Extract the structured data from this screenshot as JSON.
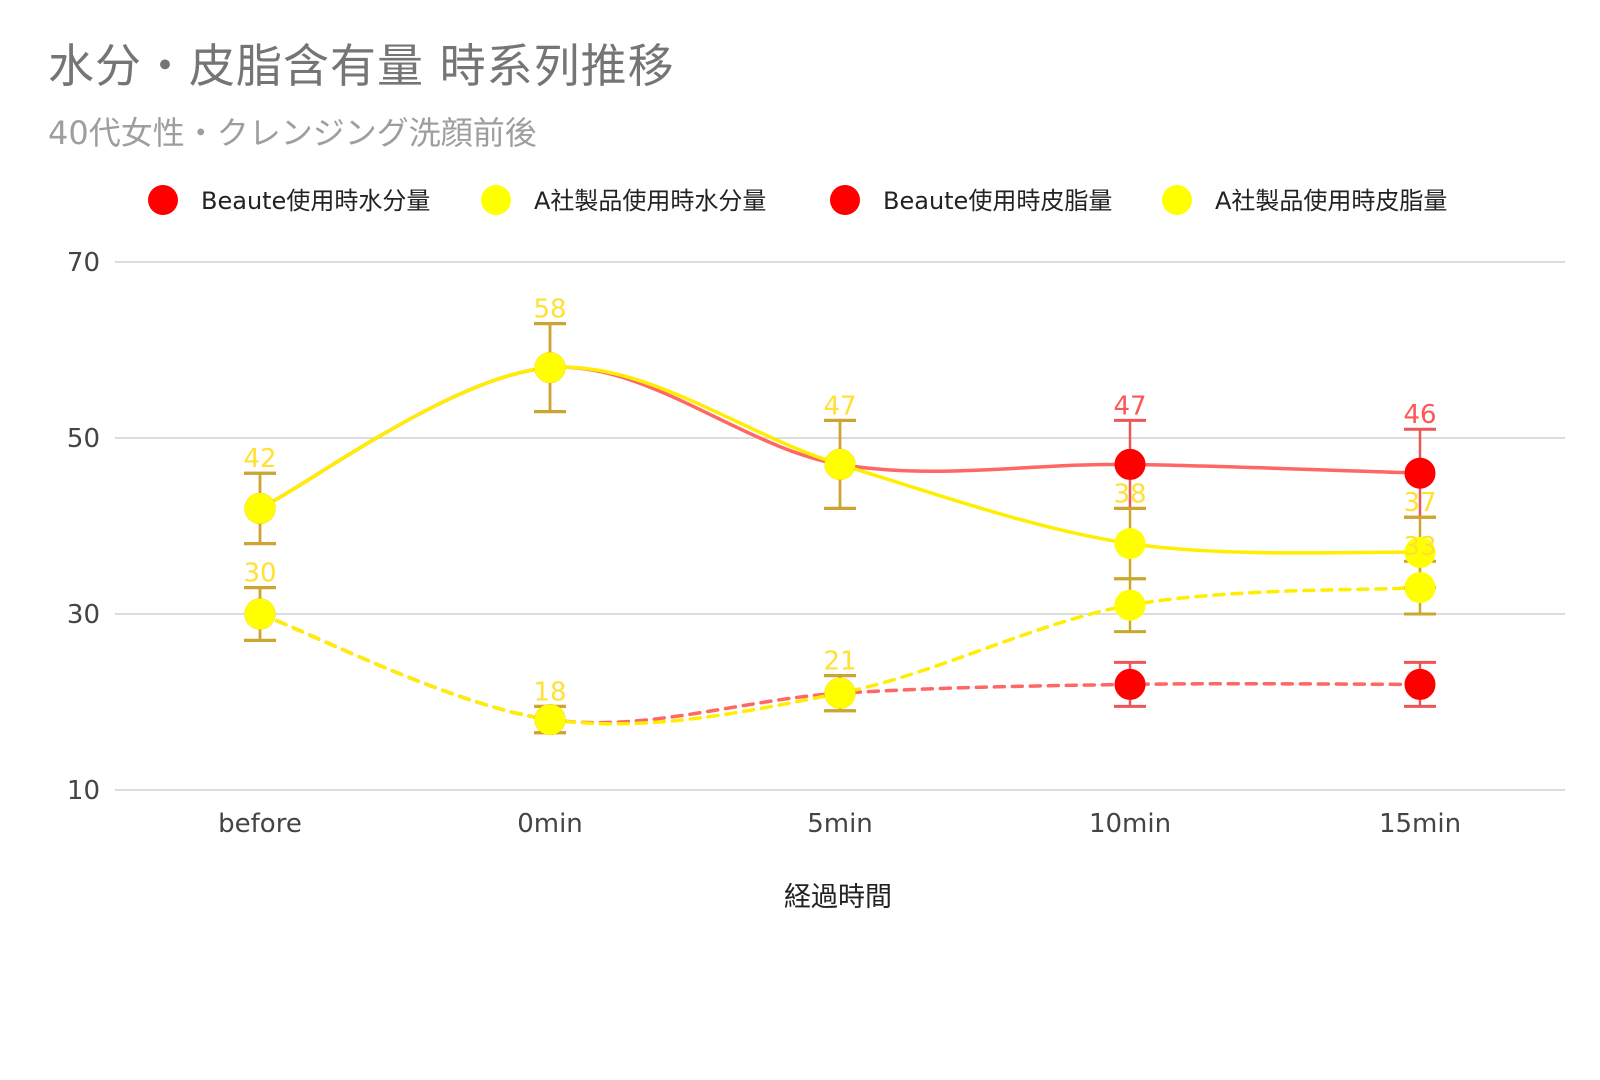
{
  "chart_data": {
    "type": "line",
    "title": "水分・皮脂含有量 時系列推移",
    "subtitle": "40代女性・クレンジング洗顔前後",
    "xlabel": "経過時間",
    "ylabel": "",
    "categories": [
      "before",
      "0min",
      "5min",
      "10min",
      "15min"
    ],
    "ylim": [
      10,
      70
    ],
    "yticks": [
      10,
      30,
      50,
      70
    ],
    "grid": true,
    "legend_position": "top",
    "series": [
      {
        "name": "Beaute使用時水分量",
        "color": "#ff0000",
        "line_color": "#ff6666",
        "dashed": false,
        "values": [
          42,
          58,
          47,
          47,
          46
        ],
        "error": [
          4,
          5,
          5,
          5,
          5
        ],
        "labels": [
          "",
          "",
          "",
          "47",
          "46"
        ]
      },
      {
        "name": "A社製品使用時水分量",
        "color": "#ffff00",
        "line_color": "#ffee00",
        "dashed": false,
        "values": [
          42,
          58,
          47,
          38,
          37
        ],
        "error": [
          4,
          5,
          5,
          4,
          4
        ],
        "labels": [
          "42",
          "58",
          "47",
          "38",
          "37"
        ]
      },
      {
        "name": "Beaute使用時皮脂量",
        "color": "#ff0000",
        "line_color": "#ff6666",
        "dashed": true,
        "values": [
          30,
          18,
          21,
          22,
          22
        ],
        "error": [
          3,
          1.5,
          2,
          2.5,
          2.5
        ],
        "labels": [
          "",
          "",
          "",
          "",
          ""
        ]
      },
      {
        "name": "A社製品使用時皮脂量",
        "color": "#ffff00",
        "line_color": "#ffee00",
        "dashed": true,
        "values": [
          30,
          18,
          21,
          31,
          33
        ],
        "error": [
          3,
          1.5,
          2,
          3,
          3
        ],
        "labels": [
          "30",
          "18",
          "21",
          "",
          "33"
        ]
      }
    ]
  }
}
